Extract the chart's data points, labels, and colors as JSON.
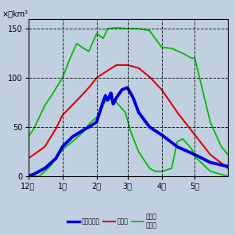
{
  "title": "×万km²",
  "bg_color": "#c0d0e0",
  "plot_bg": "#c0d0e0",
  "color_current": "#0000dd",
  "color_mean": "#dd0000",
  "color_max": "#00bb00",
  "color_min": "#00bb00",
  "lw_current": 2.8,
  "lw_mean": 1.5,
  "lw_envelope": 1.3,
  "ylim": [
    0,
    160
  ],
  "yticks": [
    0,
    50,
    100,
    150
  ],
  "legend_labels": [
    "今冬の経過",
    "平年値",
    "最大値\n最小値"
  ],
  "month_labels": [
    "12月",
    "1月",
    "2月",
    "3月",
    "4月",
    "5月"
  ]
}
